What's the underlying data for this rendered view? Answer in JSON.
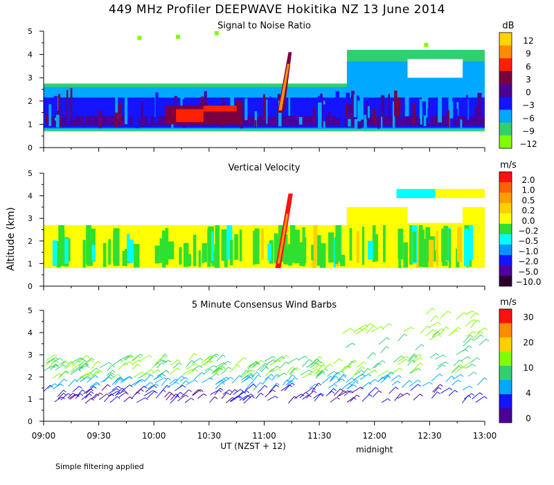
{
  "title": "449 MHz Profiler DEEPWAVE Hokitika NZ 13 June 2014",
  "footnote": "Simple filtering applied",
  "chart_data": [
    {
      "type": "heatmap",
      "title": "Signal to Noise Ratio",
      "xlabel": "UT (NZST + 12)",
      "ylabel": "Altitude (km)",
      "xlim_hours": [
        9.0,
        13.0
      ],
      "ylim": [
        0,
        5
      ],
      "yticks": [
        "0",
        "1",
        "2",
        "3",
        "4",
        "5"
      ],
      "colorbar": {
        "unit": "dB",
        "labels": [
          "12",
          "9",
          "6",
          "3",
          "0",
          "−3",
          "−6",
          "−9",
          "−12"
        ],
        "colors": [
          "#ffd400",
          "#ff8c00",
          "#ff2000",
          "#7a0040",
          "#4b0096",
          "#1414ff",
          "#00a8ff",
          "#30d070",
          "#80ff00"
        ]
      }
    },
    {
      "type": "heatmap",
      "title": "Vertical Velocity",
      "xlabel": "UT (NZST + 12)",
      "ylabel": "Altitude (km)",
      "xlim_hours": [
        9.0,
        13.0
      ],
      "ylim": [
        0,
        5
      ],
      "yticks": [
        "0",
        "1",
        "2",
        "3",
        "4",
        "5"
      ],
      "colorbar": {
        "unit": "m/s",
        "labels": [
          "2.0",
          "1.0",
          "0.5",
          "0.2",
          "0.0",
          "−0.2",
          "−0.5",
          "−1.0",
          "−2.0",
          "−5.0",
          "−10.0"
        ],
        "colors": [
          "#ff1010",
          "#ff6400",
          "#ff9c00",
          "#ffd000",
          "#ffff00",
          "#30e030",
          "#00ffff",
          "#0096ff",
          "#1414ff",
          "#5000a0",
          "#300030"
        ]
      }
    },
    {
      "type": "wind_barbs",
      "title": "5 Minute Consensus Wind Barbs",
      "xlabel": "UT (NZST + 12)",
      "ylabel": "Altitude (km)",
      "xlim_hours": [
        9.0,
        13.0
      ],
      "ylim": [
        0,
        5
      ],
      "yticks": [
        "0",
        "1",
        "2",
        "3",
        "4",
        "5"
      ],
      "colorbar": {
        "unit": "m/s",
        "labels": [
          "30",
          "20",
          "10",
          "4",
          "0"
        ],
        "colors": [
          "#ff1010",
          "#ff8c00",
          "#ffd000",
          "#80ff00",
          "#30d070",
          "#00a8ff",
          "#1414ff",
          "#4b0096"
        ]
      }
    }
  ],
  "x_axis": {
    "ticks": [
      "09:00",
      "09:30",
      "10:00",
      "10:30",
      "11:00",
      "11:30",
      "12:00",
      "12:30",
      "13:00"
    ],
    "label": "UT (NZST + 12)",
    "annotation": "midnight"
  }
}
